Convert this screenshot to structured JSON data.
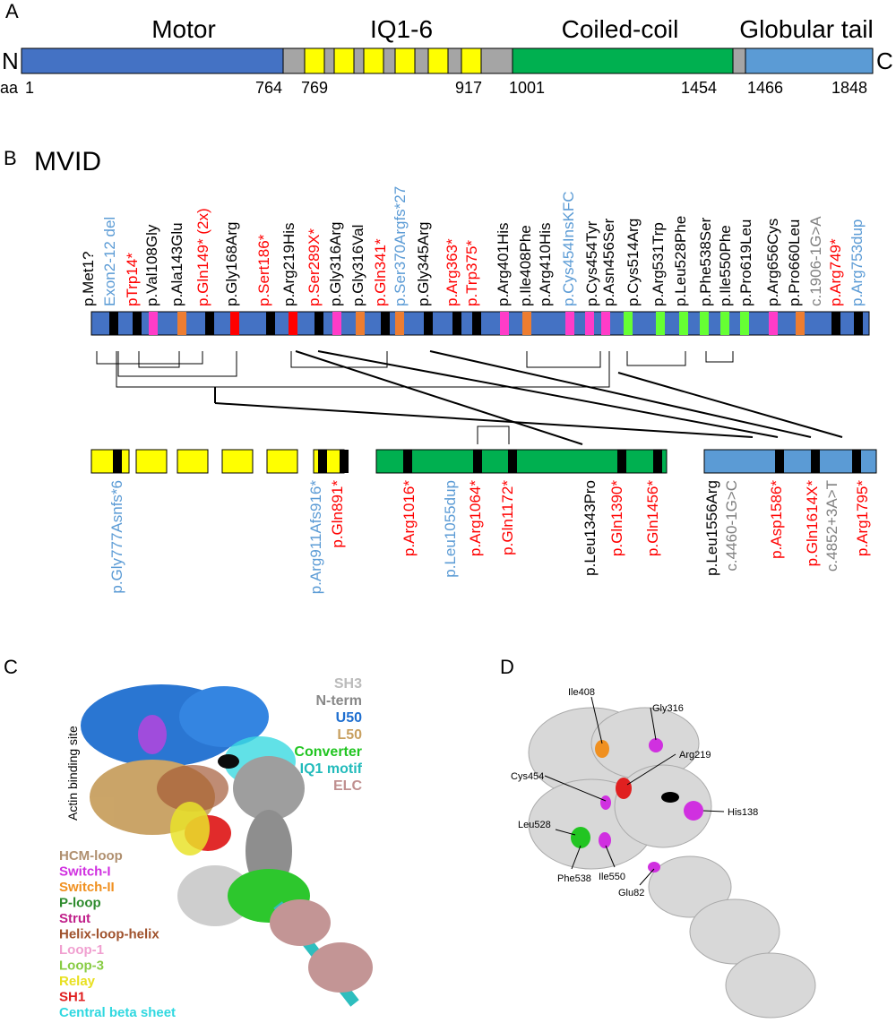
{
  "colors": {
    "motor": "#4472C4",
    "gray": "#A5A5A5",
    "iq": "#FFFF00",
    "coil": "#00B050",
    "tail": "#5B9BD5",
    "black": "#000000",
    "red": "#FF0000",
    "blue": "#5B9BD5",
    "pink": "#FF3CC8",
    "orange": "#ED7D31",
    "lime": "#66FF33",
    "grayText": "#808080"
  },
  "panelA": {
    "label": "A",
    "domains": [
      "Motor",
      "IQ1-6",
      "Coiled-coil",
      "Globular tail"
    ],
    "n": "N",
    "c": "C",
    "aa": "aa",
    "ticks": [
      "1",
      "764",
      "769",
      "917",
      "1001",
      "1454",
      "1466",
      "1848"
    ]
  },
  "panelB": {
    "label": "B",
    "title": "MVID",
    "top_labels": [
      {
        "text": "p.Met1?",
        "color": "black"
      },
      {
        "text": "Exon2-12 del",
        "color": "blue"
      },
      {
        "text": "pTrp14*",
        "color": "red"
      },
      {
        "text": "p.Val108Gly",
        "color": "black"
      },
      {
        "text": "p.Ala143Glu",
        "color": "black"
      },
      {
        "text": "p.Gln149* (2x)",
        "color": "red"
      },
      {
        "text": "p.Gly168Arg",
        "color": "black"
      },
      {
        "text": "p.Sert186*",
        "color": "red"
      },
      {
        "text": "p.Arg219His",
        "color": "black"
      },
      {
        "text": "p.Ser289X*",
        "color": "red"
      },
      {
        "text": "p.Gly316Arg",
        "color": "black"
      },
      {
        "text": "p.Gly316Val",
        "color": "black"
      },
      {
        "text": "p.Gln341*",
        "color": "red"
      },
      {
        "text": "p.Ser370Argfs*27",
        "color": "blue"
      },
      {
        "text": "p.Gly345Arg",
        "color": "black"
      },
      {
        "text": "p.Arg363*",
        "color": "red"
      },
      {
        "text": "p.Trp375*",
        "color": "red"
      },
      {
        "text": "p.Arg401His",
        "color": "black"
      },
      {
        "text": "p.Ile408Phe",
        "color": "black"
      },
      {
        "text": "p.Arg410His",
        "color": "black"
      },
      {
        "text": "p.Cys454InsKFC",
        "color": "blue"
      },
      {
        "text": "p.Cys454Tyr",
        "color": "black"
      },
      {
        "text": "p.Asn456Ser",
        "color": "black"
      },
      {
        "text": "p.Cys514Arg",
        "color": "black"
      },
      {
        "text": "p.Arg531Trp",
        "color": "black"
      },
      {
        "text": "p.Leu528Phe",
        "color": "black"
      },
      {
        "text": "p.Phe538Ser",
        "color": "black"
      },
      {
        "text": "p.Ile550Phe",
        "color": "black"
      },
      {
        "text": "p.Pro619Leu",
        "color": "black"
      },
      {
        "text": "p.Arg656Cys",
        "color": "black"
      },
      {
        "text": "p.Pro660Leu",
        "color": "black"
      },
      {
        "text": "c.1906-1G>A",
        "color": "grayText"
      },
      {
        "text": "p.Arg749*",
        "color": "red"
      },
      {
        "text": "p.Arg753dup",
        "color": "blue"
      }
    ],
    "bottom_labels": [
      {
        "text": "p.Gly777Asnfs*6",
        "color": "blue"
      },
      {
        "text": "p.Arg911Afs916*",
        "color": "blue"
      },
      {
        "text": "p.Gln891*",
        "color": "red"
      },
      {
        "text": "p.Arg1016*",
        "color": "red"
      },
      {
        "text": "p.Leu1055dup",
        "color": "blue"
      },
      {
        "text": "p.Arg1064*",
        "color": "red"
      },
      {
        "text": "p.Gln1172*",
        "color": "red"
      },
      {
        "text": "p.Leu1343Pro",
        "color": "black"
      },
      {
        "text": "p.Gln1390*",
        "color": "red"
      },
      {
        "text": "p.Gln1456*",
        "color": "red"
      },
      {
        "text": "p.Leu1556Arg",
        "color": "black"
      },
      {
        "text": "c.4460-1G>C",
        "color": "grayText"
      },
      {
        "text": "p.Asp1586*",
        "color": "red"
      },
      {
        "text": "p.Gln1614X*",
        "color": "red"
      },
      {
        "text": "c.4852+3A>T",
        "color": "grayText"
      },
      {
        "text": "p.Arg1795*",
        "color": "red"
      }
    ]
  },
  "panelC": {
    "label": "C",
    "site": "Actin binding site",
    "legend_right": [
      {
        "text": "SH3",
        "color": "#BBBBBB"
      },
      {
        "text": "N-term",
        "color": "#888888"
      },
      {
        "text": "U50",
        "color": "#1F6FD0"
      },
      {
        "text": "L50",
        "color": "#C8A060"
      },
      {
        "text": "Converter",
        "color": "#22C522"
      },
      {
        "text": "IQ1 motif",
        "color": "#22BBBB"
      },
      {
        "text": "ELC",
        "color": "#C09090"
      }
    ],
    "legend_left": [
      {
        "text": "HCM-loop",
        "color": "#B09070"
      },
      {
        "text": "Switch-I",
        "color": "#D030E0"
      },
      {
        "text": "Switch-II",
        "color": "#F09020"
      },
      {
        "text": "P-loop",
        "color": "#2E8B2E"
      },
      {
        "text": "Strut",
        "color": "#C0208A"
      },
      {
        "text": "Helix-loop-helix",
        "color": "#A0522D"
      },
      {
        "text": "Loop-1",
        "color": "#F0A0D0"
      },
      {
        "text": "Loop-3",
        "color": "#88CC44"
      },
      {
        "text": "Relay",
        "color": "#E8E020"
      },
      {
        "text": "SH1",
        "color": "#E02020"
      },
      {
        "text": "Central beta sheet",
        "color": "#30D8E0"
      }
    ]
  },
  "panelD": {
    "label": "D",
    "residues": [
      "Ile408",
      "Gly316",
      "Arg219",
      "Cys454",
      "His138",
      "Leu528",
      "Phe538",
      "Ile550",
      "Glu82"
    ]
  }
}
